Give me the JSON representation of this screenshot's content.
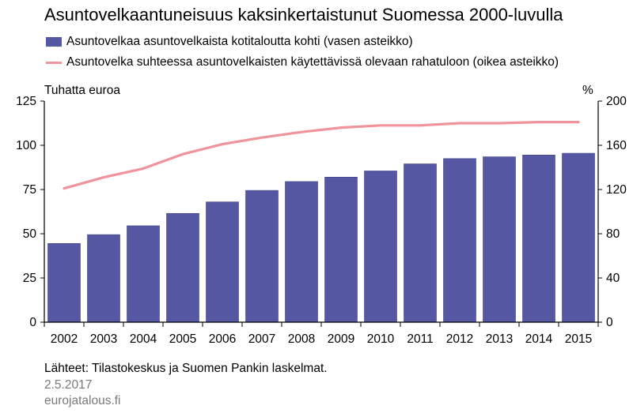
{
  "title": "Asuntovelkaantuneisuus kaksinkertaistunut Suomessa 2000-luvulla",
  "legend": {
    "bars": "Asuntovelkaa asuntovelkaista kotitaloutta kohti (vasen asteikko)",
    "line": "Asuntovelka suhteessa asuntovelkaisten käytettävissä olevaan rahatuloon (oikea asteikko)"
  },
  "unit_left": "Tuhatta euroa",
  "unit_right": "%",
  "footer": {
    "source": "Lähteet: Tilastokeskus ja Suomen Pankin laskelmat.",
    "date": "2.5.2017",
    "site": "eurojatalous.fi"
  },
  "colors": {
    "bar": "#5557a3",
    "line": "#f0939b",
    "axis": "#000000"
  },
  "chart_data": {
    "type": "bar",
    "categories": [
      "2002",
      "2003",
      "2004",
      "2005",
      "2006",
      "2007",
      "2008",
      "2009",
      "2010",
      "2011",
      "2012",
      "2013",
      "2014",
      "2015"
    ],
    "series": [
      {
        "name": "Asuntovelkaa asuntovelkaista kotitaloutta kohti (vasen asteikko)",
        "type": "bar",
        "axis": "left",
        "values": [
          44.5,
          49.5,
          54.5,
          61.5,
          68,
          74.5,
          79.5,
          82,
          85.5,
          89.5,
          92.5,
          93.5,
          94.5,
          95.5
        ]
      },
      {
        "name": "Asuntovelka suhteessa asuntovelkaisten käytettävissä olevaan rahatuloon (oikea asteikko)",
        "type": "line",
        "axis": "right",
        "values": [
          121,
          131,
          139,
          152,
          161,
          167,
          172,
          176,
          178,
          178,
          180,
          180,
          181,
          181
        ]
      }
    ],
    "y_left": {
      "label": "Tuhatta euroa",
      "lim": [
        0,
        125
      ],
      "ticks": [
        0,
        25,
        50,
        75,
        100,
        125
      ]
    },
    "y_right": {
      "label": "%",
      "lim": [
        0,
        200
      ],
      "ticks": [
        0,
        40,
        80,
        120,
        160,
        200
      ]
    },
    "grid": false,
    "legend_position": "top"
  }
}
